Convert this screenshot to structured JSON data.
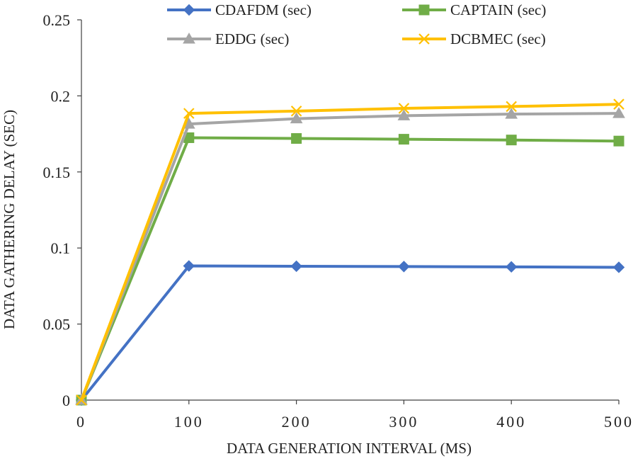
{
  "chart_data": {
    "type": "line",
    "title": "",
    "xlabel": "DATA GENERATION INTERVAL (MS)",
    "ylabel": "DATA GATHERING DELAY (SEC)",
    "x": [
      0,
      100,
      200,
      300,
      400,
      500
    ],
    "xlim": [
      0,
      500
    ],
    "ylim": [
      0,
      0.25
    ],
    "x_ticks": [
      0,
      100,
      200,
      300,
      400,
      500
    ],
    "x_tick_labels": [
      "0",
      "100",
      "200",
      "300",
      "400",
      "500"
    ],
    "y_ticks": [
      0,
      0.05,
      0.1,
      0.15,
      0.2,
      0.25
    ],
    "y_tick_labels": [
      "0",
      "0.05",
      "0.1",
      "0.15",
      "0.2",
      "0.25"
    ],
    "grid": false,
    "legend_position": "top",
    "series": [
      {
        "name": "CDAFDM (sec)",
        "color": "#4472C4",
        "marker": "diamond",
        "values": [
          0,
          0.0882,
          0.088,
          0.0878,
          0.0876,
          0.0873
        ]
      },
      {
        "name": "CAPTAIN (sec)",
        "color": "#70AD47",
        "marker": "square",
        "values": [
          0,
          0.1725,
          0.172,
          0.1715,
          0.171,
          0.1703
        ]
      },
      {
        "name": "EDDG (sec)",
        "color": "#A5A5A5",
        "marker": "triangle",
        "values": [
          0,
          0.1815,
          0.185,
          0.187,
          0.188,
          0.1885
        ]
      },
      {
        "name": "DCBMEC (sec)",
        "color": "#FFC000",
        "marker": "x",
        "values": [
          0,
          0.1885,
          0.19,
          0.1918,
          0.193,
          0.1945
        ]
      }
    ]
  }
}
